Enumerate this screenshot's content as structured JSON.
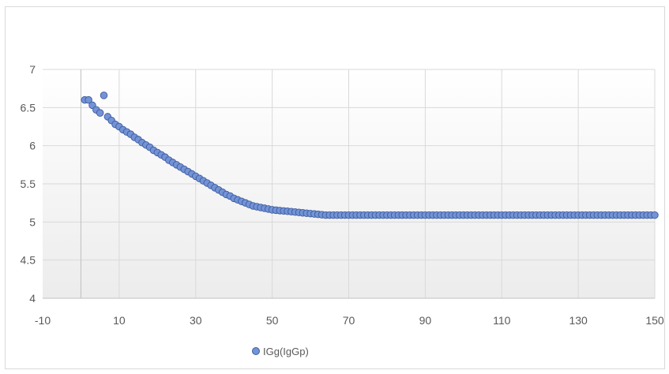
{
  "chart_data": {
    "type": "scatter",
    "title": "",
    "xlabel": "",
    "ylabel": "",
    "xlim": [
      -10,
      150
    ],
    "ylim": [
      4,
      7
    ],
    "x_ticks": [
      -10,
      10,
      30,
      50,
      70,
      90,
      110,
      130,
      150
    ],
    "y_ticks": [
      4,
      4.5,
      5,
      5.5,
      6,
      6.5,
      7
    ],
    "x_tick_labels": [
      "-10",
      "10",
      "30",
      "50",
      "70",
      "90",
      "110",
      "130",
      "150"
    ],
    "y_tick_labels": [
      "4",
      "4.5",
      "5",
      "5.5",
      "6",
      "6.5",
      "7"
    ],
    "grid": true,
    "legend": "bottom",
    "colors": {
      "marker_fill": "#7393d6",
      "marker_stroke": "#3c5c9f",
      "grid": "#d9d9d9",
      "axis_text": "#595959"
    },
    "series": [
      {
        "name": "IGg(IgGp)",
        "points": [
          [
            1,
            6.6
          ],
          [
            2,
            6.6
          ],
          [
            3,
            6.53
          ],
          [
            4,
            6.47
          ],
          [
            5,
            6.43
          ],
          [
            6,
            6.66
          ],
          [
            7,
            6.38
          ],
          [
            8,
            6.33
          ],
          [
            9,
            6.28
          ],
          [
            10,
            6.25
          ],
          [
            11,
            6.21
          ],
          [
            12,
            6.18
          ],
          [
            13,
            6.15
          ],
          [
            14,
            6.11
          ],
          [
            15,
            6.08
          ],
          [
            16,
            6.04
          ],
          [
            17,
            6.01
          ],
          [
            18,
            5.98
          ],
          [
            19,
            5.94
          ],
          [
            20,
            5.91
          ],
          [
            21,
            5.88
          ],
          [
            22,
            5.85
          ],
          [
            23,
            5.81
          ],
          [
            24,
            5.78
          ],
          [
            25,
            5.75
          ],
          [
            26,
            5.72
          ],
          [
            27,
            5.69
          ],
          [
            28,
            5.66
          ],
          [
            29,
            5.63
          ],
          [
            30,
            5.6
          ],
          [
            31,
            5.57
          ],
          [
            32,
            5.54
          ],
          [
            33,
            5.51
          ],
          [
            34,
            5.48
          ],
          [
            35,
            5.45
          ],
          [
            36,
            5.42
          ],
          [
            37,
            5.39
          ],
          [
            38,
            5.36
          ],
          [
            39,
            5.34
          ],
          [
            40,
            5.31
          ],
          [
            41,
            5.29
          ],
          [
            42,
            5.27
          ],
          [
            43,
            5.25
          ],
          [
            44,
            5.23
          ],
          [
            45,
            5.21
          ],
          [
            46,
            5.2
          ],
          [
            47,
            5.19
          ],
          [
            48,
            5.18
          ],
          [
            49,
            5.17
          ],
          [
            50,
            5.16
          ],
          [
            51,
            5.155
          ],
          [
            52,
            5.15
          ],
          [
            53,
            5.145
          ],
          [
            54,
            5.14
          ],
          [
            55,
            5.135
          ],
          [
            56,
            5.13
          ],
          [
            57,
            5.125
          ],
          [
            58,
            5.12
          ],
          [
            59,
            5.115
          ],
          [
            60,
            5.11
          ],
          [
            61,
            5.105
          ],
          [
            62,
            5.1
          ],
          [
            63,
            5.095
          ],
          [
            64,
            5.09
          ],
          [
            65,
            5.09
          ],
          [
            66,
            5.09
          ],
          [
            67,
            5.09
          ],
          [
            68,
            5.09
          ],
          [
            69,
            5.09
          ],
          [
            70,
            5.09
          ],
          [
            71,
            5.09
          ],
          [
            72,
            5.09
          ],
          [
            73,
            5.09
          ],
          [
            74,
            5.09
          ],
          [
            75,
            5.09
          ],
          [
            76,
            5.09
          ],
          [
            77,
            5.09
          ],
          [
            78,
            5.09
          ],
          [
            79,
            5.09
          ],
          [
            80,
            5.09
          ],
          [
            81,
            5.09
          ],
          [
            82,
            5.09
          ],
          [
            83,
            5.09
          ],
          [
            84,
            5.09
          ],
          [
            85,
            5.09
          ],
          [
            86,
            5.09
          ],
          [
            87,
            5.09
          ],
          [
            88,
            5.09
          ],
          [
            89,
            5.09
          ],
          [
            90,
            5.09
          ],
          [
            91,
            5.09
          ],
          [
            92,
            5.09
          ],
          [
            93,
            5.09
          ],
          [
            94,
            5.09
          ],
          [
            95,
            5.09
          ],
          [
            96,
            5.09
          ],
          [
            97,
            5.09
          ],
          [
            98,
            5.09
          ],
          [
            99,
            5.09
          ],
          [
            100,
            5.09
          ],
          [
            101,
            5.09
          ],
          [
            102,
            5.09
          ],
          [
            103,
            5.09
          ],
          [
            104,
            5.09
          ],
          [
            105,
            5.09
          ],
          [
            106,
            5.09
          ],
          [
            107,
            5.09
          ],
          [
            108,
            5.09
          ],
          [
            109,
            5.09
          ],
          [
            110,
            5.09
          ],
          [
            111,
            5.09
          ],
          [
            112,
            5.09
          ],
          [
            113,
            5.09
          ],
          [
            114,
            5.09
          ],
          [
            115,
            5.09
          ],
          [
            116,
            5.09
          ],
          [
            117,
            5.09
          ],
          [
            118,
            5.09
          ],
          [
            119,
            5.09
          ],
          [
            120,
            5.09
          ],
          [
            121,
            5.09
          ],
          [
            122,
            5.09
          ],
          [
            123,
            5.09
          ],
          [
            124,
            5.09
          ],
          [
            125,
            5.09
          ],
          [
            126,
            5.09
          ],
          [
            127,
            5.09
          ],
          [
            128,
            5.09
          ],
          [
            129,
            5.09
          ],
          [
            130,
            5.09
          ],
          [
            131,
            5.09
          ],
          [
            132,
            5.09
          ],
          [
            133,
            5.09
          ],
          [
            134,
            5.09
          ],
          [
            135,
            5.09
          ],
          [
            136,
            5.09
          ],
          [
            137,
            5.09
          ],
          [
            138,
            5.09
          ],
          [
            139,
            5.09
          ],
          [
            140,
            5.09
          ],
          [
            141,
            5.09
          ],
          [
            142,
            5.09
          ],
          [
            143,
            5.09
          ],
          [
            144,
            5.09
          ],
          [
            145,
            5.09
          ],
          [
            146,
            5.09
          ],
          [
            147,
            5.09
          ],
          [
            148,
            5.09
          ],
          [
            149,
            5.09
          ],
          [
            150,
            5.09
          ]
        ]
      }
    ]
  }
}
